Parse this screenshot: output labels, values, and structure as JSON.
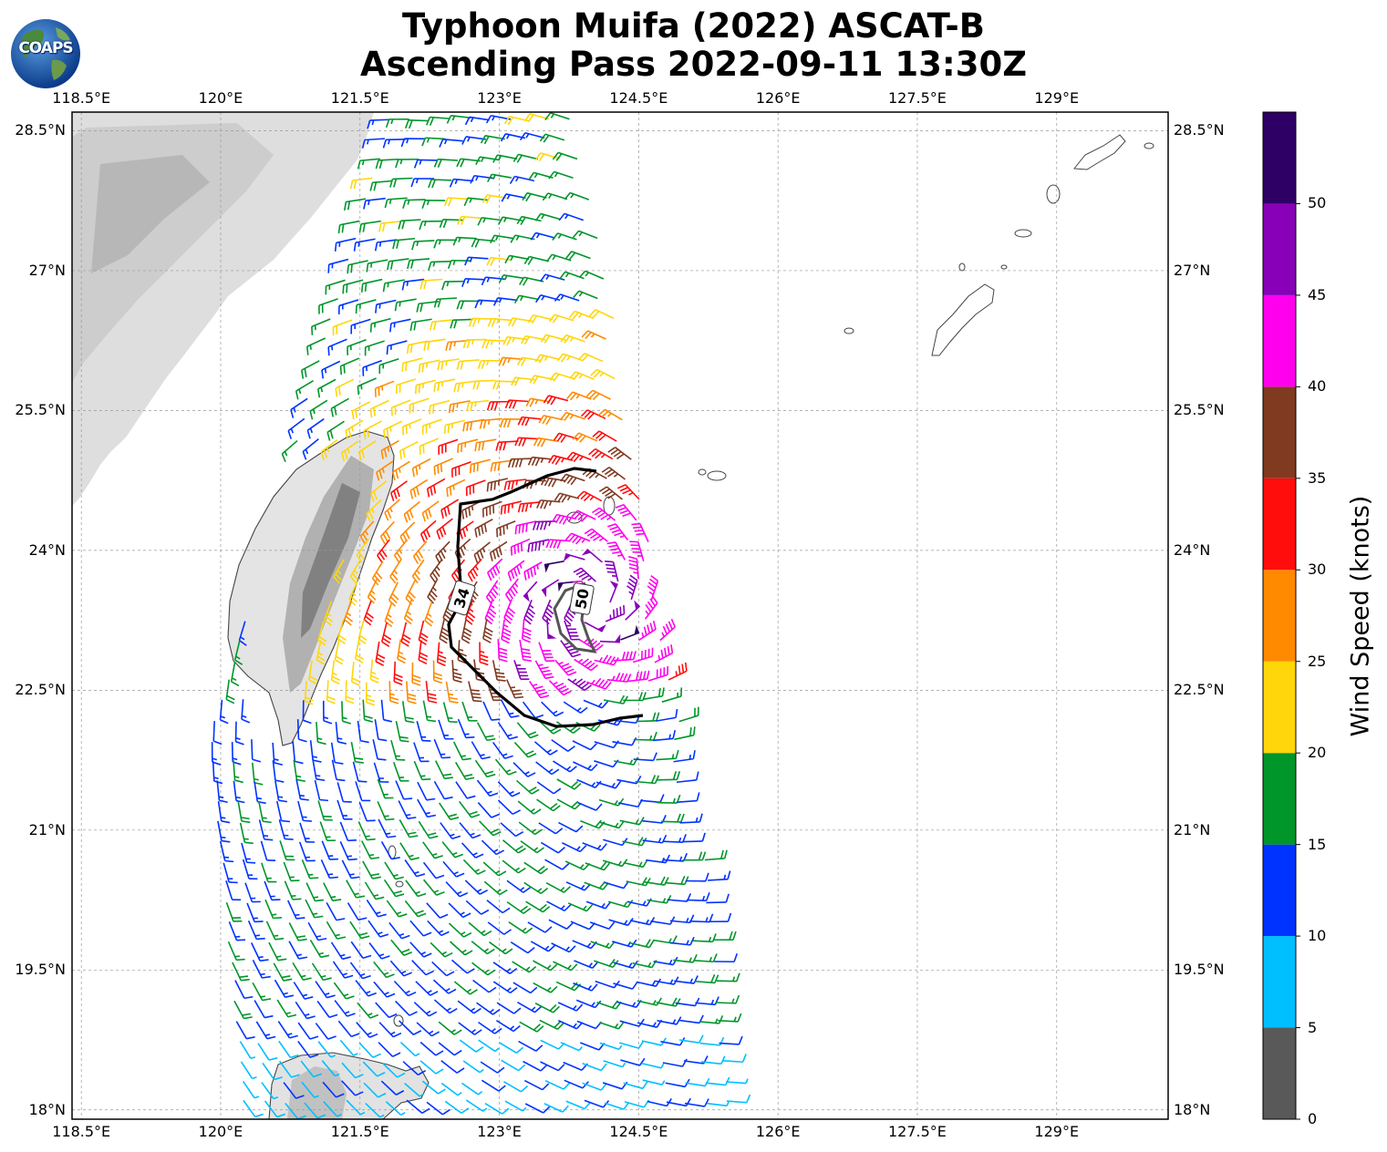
{
  "title_line1": "Typhoon Muifa (2022) ASCAT-B",
  "title_line2": "Ascending Pass 2022-09-11 13:30Z",
  "logo_text": "COAPS",
  "map": {
    "lon_range": [
      118.4,
      130.2
    ],
    "lat_range": [
      17.9,
      28.7
    ],
    "lon_ticks": [
      "118.5°E",
      "120°E",
      "121.5°E",
      "123°E",
      "124.5°E",
      "126°E",
      "127.5°E",
      "129°E"
    ],
    "lon_values": [
      118.5,
      120,
      121.5,
      123,
      124.5,
      126,
      127.5,
      129
    ],
    "lat_ticks": [
      "28.5°N",
      "27°N",
      "25.5°N",
      "24°N",
      "22.5°N",
      "21°N",
      "19.5°N",
      "18°N"
    ],
    "lat_values": [
      28.5,
      27,
      25.5,
      24,
      22.5,
      21,
      19.5,
      18
    ],
    "contour_labels": [
      "34",
      "50"
    ],
    "storm_center": {
      "lon": 123.95,
      "lat": 23.45
    }
  },
  "colorbar": {
    "label": "Wind Speed (knots)",
    "ticks": [
      "0",
      "5",
      "10",
      "15",
      "20",
      "25",
      "30",
      "35",
      "40",
      "45",
      "50"
    ],
    "levels": [
      0,
      5,
      10,
      15,
      20,
      25,
      30,
      35,
      40,
      45,
      50,
      55
    ],
    "colors": [
      "#595959",
      "#00bfff",
      "#0033ff",
      "#00962a",
      "#ffd60a",
      "#ff8a00",
      "#ff0d0d",
      "#7f3a20",
      "#ff00ee",
      "#8800b8",
      "#2e0066"
    ]
  }
}
